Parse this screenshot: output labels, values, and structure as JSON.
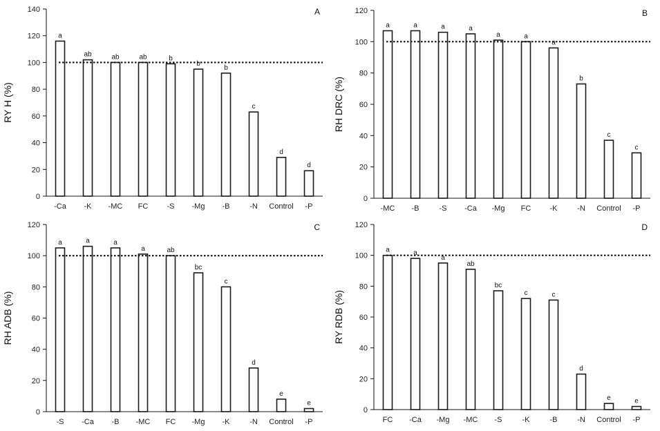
{
  "chart_data": [
    {
      "type": "bar",
      "panel": "A",
      "ylabel": "RY H (%)",
      "ylim": [
        0,
        140
      ],
      "yticks": [
        0,
        20,
        40,
        60,
        80,
        100,
        120,
        140
      ],
      "reference_line": 100,
      "categories": [
        "-Ca",
        "-K",
        "-MC",
        "FC",
        "-S",
        "-Mg",
        "-B",
        "-N",
        "Control",
        "-P"
      ],
      "values": [
        116,
        102,
        100,
        100,
        99,
        95,
        92,
        63,
        29,
        19
      ],
      "letters": [
        "a",
        "ab",
        "ab",
        "ab",
        "b",
        "b",
        "b",
        "c",
        "d",
        "d"
      ]
    },
    {
      "type": "bar",
      "panel": "B",
      "ylabel": "RH DRC (%)",
      "ylim": [
        0,
        120
      ],
      "yticks": [
        0,
        20,
        40,
        60,
        80,
        100,
        120
      ],
      "reference_line": 100,
      "categories": [
        "-MC",
        "-B",
        "-S",
        "-Ca",
        "-Mg",
        "FC",
        "-K",
        "-N",
        "Control",
        "-P"
      ],
      "values": [
        107,
        107,
        106,
        105,
        101,
        100,
        96,
        73,
        37,
        29
      ],
      "letters": [
        "a",
        "a",
        "a",
        "a",
        "a",
        "a",
        "a",
        "b",
        "c",
        "c"
      ]
    },
    {
      "type": "bar",
      "panel": "C",
      "ylabel": "RH ADB (%)",
      "ylim": [
        0,
        120
      ],
      "yticks": [
        0,
        20,
        40,
        60,
        80,
        100,
        120
      ],
      "reference_line": 100,
      "categories": [
        "-S",
        "-Ca",
        "-B",
        "-MC",
        "FC",
        "-Mg",
        "-K",
        "-N",
        "Control",
        "-P"
      ],
      "values": [
        105,
        106,
        105,
        101,
        100,
        89,
        80,
        28,
        8,
        2
      ],
      "letters": [
        "a",
        "a",
        "a",
        "a",
        "ab",
        "bc",
        "c",
        "d",
        "e",
        "e"
      ]
    },
    {
      "type": "bar",
      "panel": "D",
      "ylabel": "RY RDB (%)",
      "ylim": [
        0,
        120
      ],
      "yticks": [
        0,
        20,
        40,
        60,
        80,
        100,
        120
      ],
      "reference_line": 100,
      "categories": [
        "FC",
        "-Ca",
        "-Mg",
        "-MC",
        "-S",
        "-K",
        "-B",
        "-N",
        "Control",
        "-P"
      ],
      "values": [
        100,
        98,
        95,
        91,
        77,
        72,
        71,
        23,
        4,
        2
      ],
      "letters": [
        "a",
        "a",
        "a",
        "ab",
        "bc",
        "c",
        "c",
        "d",
        "e",
        "e"
      ]
    }
  ]
}
